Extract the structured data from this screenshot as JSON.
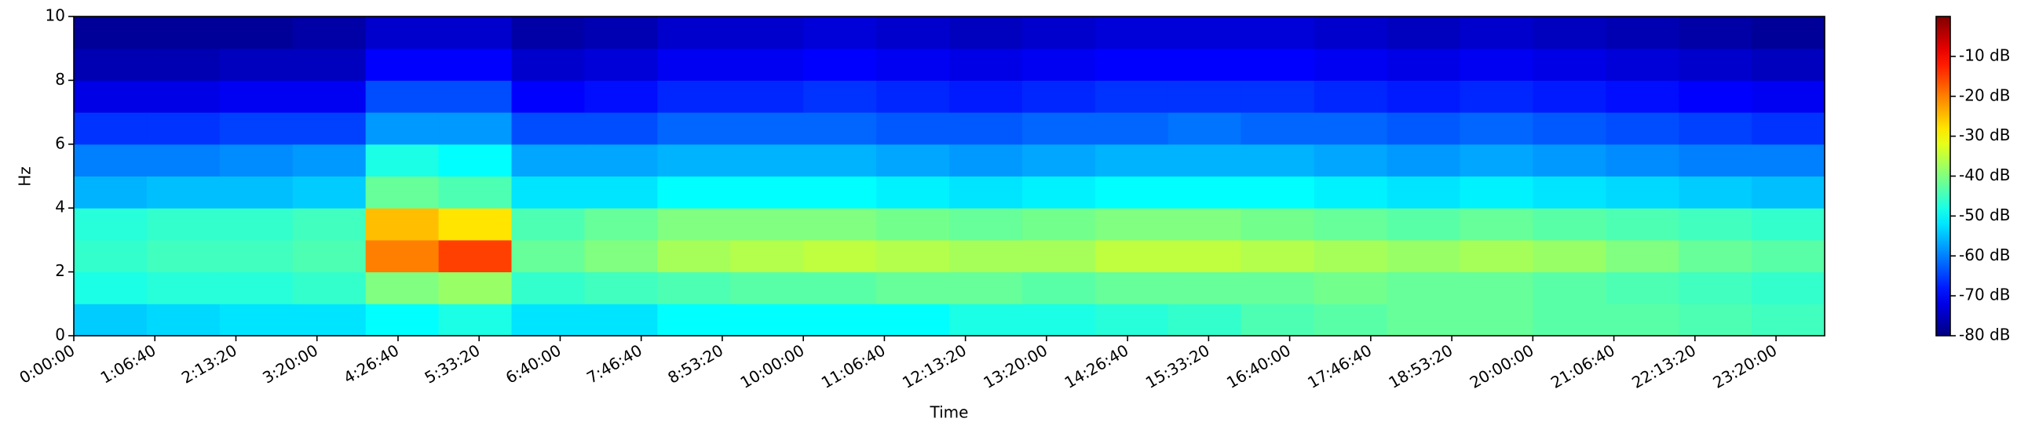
{
  "chart_data": {
    "type": "heatmap",
    "xlabel": "Time",
    "ylabel": "Hz",
    "colormap": "jet",
    "xlim": [
      0,
      86400
    ],
    "ylim": [
      0,
      10
    ],
    "clim": [
      -80,
      0
    ],
    "xticks": [
      {
        "value": 0,
        "label": "0:00:00"
      },
      {
        "value": 4000,
        "label": "1:06:40"
      },
      {
        "value": 8000,
        "label": "2:13:20"
      },
      {
        "value": 12000,
        "label": "3:20:00"
      },
      {
        "value": 16000,
        "label": "4:26:40"
      },
      {
        "value": 20000,
        "label": "5:33:20"
      },
      {
        "value": 24000,
        "label": "6:40:00"
      },
      {
        "value": 28000,
        "label": "7:46:40"
      },
      {
        "value": 32000,
        "label": "8:53:20"
      },
      {
        "value": 36000,
        "label": "10:00:00"
      },
      {
        "value": 40000,
        "label": "11:06:40"
      },
      {
        "value": 44000,
        "label": "12:13:20"
      },
      {
        "value": 48000,
        "label": "13:20:00"
      },
      {
        "value": 52000,
        "label": "14:26:40"
      },
      {
        "value": 56000,
        "label": "15:33:20"
      },
      {
        "value": 60000,
        "label": "16:40:00"
      },
      {
        "value": 64000,
        "label": "17:46:40"
      },
      {
        "value": 68000,
        "label": "18:53:20"
      },
      {
        "value": 72000,
        "label": "20:00:00"
      },
      {
        "value": 76000,
        "label": "21:06:40"
      },
      {
        "value": 80000,
        "label": "22:13:20"
      },
      {
        "value": 84000,
        "label": "23:20:00"
      }
    ],
    "yticks": [
      0,
      2,
      4,
      6,
      8,
      10
    ],
    "cticks": [
      {
        "value": -80,
        "label": "-80 dB"
      },
      {
        "value": -70,
        "label": "-70 dB"
      },
      {
        "value": -60,
        "label": "-60 dB"
      },
      {
        "value": -50,
        "label": "-50 dB"
      },
      {
        "value": -40,
        "label": "-40 dB"
      },
      {
        "value": -30,
        "label": "-30 dB"
      },
      {
        "value": -20,
        "label": "-20 dB"
      },
      {
        "value": -10,
        "label": "-10 dB"
      }
    ],
    "x": [
      1800,
      5400,
      9000,
      12600,
      16200,
      19800,
      23400,
      27000,
      30600,
      34200,
      37800,
      41400,
      45000,
      48600,
      52200,
      55800,
      59400,
      63000,
      66600,
      70200,
      73800,
      77400,
      81000,
      84600
    ],
    "y": [
      0.5,
      1.5,
      2.5,
      3.5,
      4.5,
      5.5,
      6.5,
      7.5,
      8.5,
      9.5
    ],
    "z": [
      [
        -54,
        -53,
        -52,
        -52,
        -50,
        -48,
        -52,
        -52,
        -50,
        -50,
        -50,
        -50,
        -48,
        -48,
        -47,
        -46,
        -44,
        -43,
        -42,
        -42,
        -43,
        -43,
        -44,
        -45
      ],
      [
        -48,
        -47,
        -47,
        -46,
        -40,
        -38,
        -46,
        -45,
        -44,
        -43,
        -43,
        -42,
        -42,
        -43,
        -42,
        -42,
        -42,
        -41,
        -42,
        -42,
        -43,
        -44,
        -45,
        -46
      ],
      [
        -46,
        -45,
        -45,
        -44,
        -20,
        -15,
        -42,
        -40,
        -37,
        -36,
        -35,
        -36,
        -37,
        -37,
        -35,
        -35,
        -36,
        -37,
        -38,
        -37,
        -38,
        -40,
        -42,
        -43
      ],
      [
        -47,
        -46,
        -46,
        -45,
        -25,
        -28,
        -44,
        -42,
        -40,
        -40,
        -40,
        -41,
        -42,
        -41,
        -40,
        -40,
        -41,
        -42,
        -43,
        -42,
        -43,
        -44,
        -45,
        -46
      ],
      [
        -56,
        -55,
        -55,
        -54,
        -42,
        -44,
        -52,
        -52,
        -50,
        -50,
        -50,
        -51,
        -52,
        -51,
        -50,
        -50,
        -50,
        -51,
        -52,
        -51,
        -52,
        -53,
        -54,
        -55
      ],
      [
        -60,
        -60,
        -59,
        -58,
        -48,
        -50,
        -57,
        -57,
        -56,
        -56,
        -56,
        -57,
        -58,
        -57,
        -56,
        -56,
        -56,
        -57,
        -58,
        -57,
        -58,
        -59,
        -60,
        -60
      ],
      [
        -66,
        -66,
        -65,
        -65,
        -58,
        -58,
        -64,
        -64,
        -62,
        -62,
        -62,
        -63,
        -63,
        -62,
        -62,
        -61,
        -62,
        -62,
        -63,
        -62,
        -63,
        -64,
        -65,
        -66
      ],
      [
        -72,
        -72,
        -71,
        -71,
        -64,
        -64,
        -70,
        -69,
        -67,
        -67,
        -66,
        -67,
        -68,
        -67,
        -66,
        -66,
        -66,
        -67,
        -68,
        -67,
        -68,
        -69,
        -70,
        -71
      ],
      [
        -76,
        -76,
        -75,
        -75,
        -70,
        -70,
        -74,
        -73,
        -71,
        -71,
        -70,
        -71,
        -72,
        -71,
        -70,
        -70,
        -70,
        -71,
        -72,
        -71,
        -72,
        -73,
        -74,
        -75
      ],
      [
        -78,
        -78,
        -78,
        -77,
        -74,
        -74,
        -77,
        -76,
        -74,
        -74,
        -73,
        -74,
        -75,
        -74,
        -73,
        -73,
        -73,
        -74,
        -75,
        -74,
        -75,
        -76,
        -77,
        -78
      ]
    ]
  }
}
